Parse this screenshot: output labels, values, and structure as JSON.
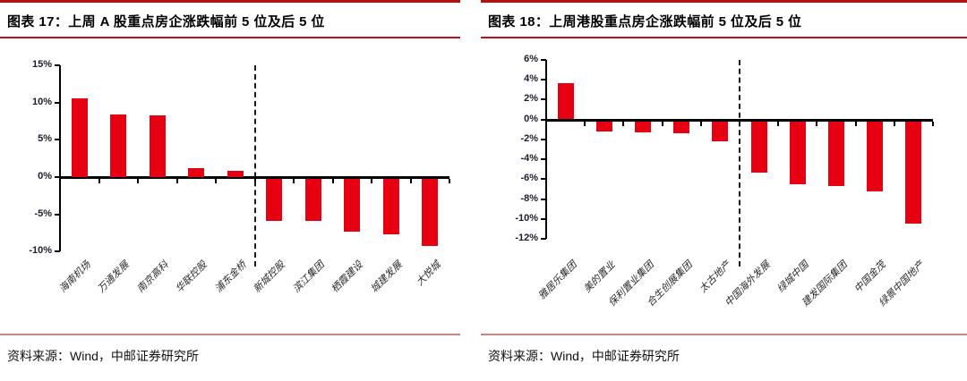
{
  "panels": [
    {
      "source": "资料来源：Wind，中邮证券研究所"
    },
    {
      "source": "资料来源：Wind，中邮证券研究所"
    }
  ],
  "colors": {
    "bar": "#e60012",
    "header_top_line": "#b50f0f",
    "header_under_line": "#c01010",
    "source_line": "#cd8383",
    "axis": "#000000"
  },
  "chart_data": [
    {
      "type": "bar",
      "title": "图表 17：上周 A 股重点房企涨跌幅前 5 位及后 5 位",
      "categories": [
        "海南机场",
        "万通发展",
        "南京高科",
        "华联控股",
        "浦东金桥",
        "新城控股",
        "滨江集团",
        "栖霞建设",
        "城建发展",
        "大悦城"
      ],
      "values": [
        10.6,
        8.4,
        8.3,
        1.2,
        0.8,
        -5.6,
        -5.7,
        -7.1,
        -7.5,
        -9.0
      ],
      "unit": "%",
      "ylim": [
        -10,
        15
      ],
      "ytick_step": 5,
      "ytick_labels": [
        "15%",
        "10%",
        "5%",
        "0%",
        "-5%",
        "-10%"
      ],
      "separator_after_index": 5,
      "grid": false,
      "legend": "none",
      "bar_color": "#e60012"
    },
    {
      "type": "bar",
      "title": "图表 18：上周港股重点房企涨跌幅前 5 位及后 5 位",
      "categories": [
        "雅居乐集团",
        "美的置业",
        "保利置业集团",
        "合生创展集团",
        "太古地产",
        "中国海外发展",
        "绿城中国",
        "建发国际集团",
        "中国金茂",
        "绿景中国地产"
      ],
      "values": [
        3.6,
        -1.0,
        -1.1,
        -1.2,
        -2.0,
        -5.2,
        -6.3,
        -6.5,
        -7.0,
        -10.3
      ],
      "unit": "%",
      "ylim": [
        -12,
        6
      ],
      "ytick_step": 2,
      "ytick_labels": [
        "6%",
        "4%",
        "2%",
        "0%",
        "-2%",
        "-4%",
        "-6%",
        "-8%",
        "-10%",
        "-12%"
      ],
      "separator_after_index": 5,
      "grid": false,
      "legend": "none",
      "bar_color": "#e60012"
    }
  ]
}
